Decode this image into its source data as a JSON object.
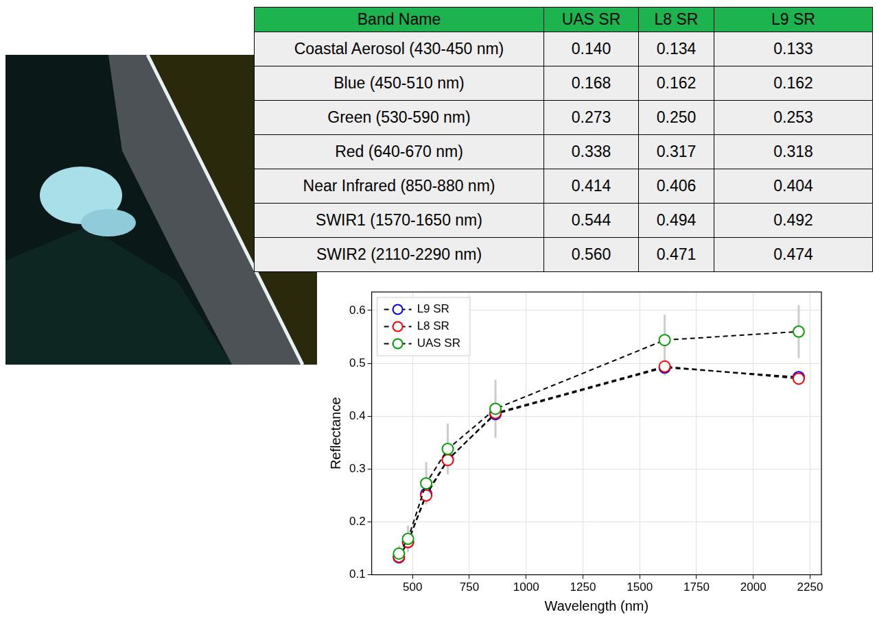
{
  "table": {
    "header": [
      "Band Name",
      "UAS SR",
      "L8 SR",
      "L9 SR"
    ],
    "rows": [
      [
        "Coastal Aerosol (430-450 nm)",
        "0.140",
        "0.134",
        "0.133"
      ],
      [
        "Blue (450-510 nm)",
        "0.168",
        "0.162",
        "0.162"
      ],
      [
        "Green (530-590 nm)",
        "0.273",
        "0.250",
        "0.253"
      ],
      [
        "Red (640-670 nm)",
        "0.338",
        "0.317",
        "0.318"
      ],
      [
        "Near Infrared (850-880 nm)",
        "0.414",
        "0.406",
        "0.404"
      ],
      [
        "SWIR1 (1570-1650 nm)",
        "0.544",
        "0.494",
        "0.492"
      ],
      [
        "SWIR2 (2110-2290 nm)",
        "0.560",
        "0.471",
        "0.474"
      ]
    ]
  },
  "chart_data": {
    "type": "line",
    "x_label": "Wavelength (nm)",
    "y_label": "Reflectance",
    "x": [
      440,
      480,
      560,
      655,
      865,
      1610,
      2200
    ],
    "series": [
      {
        "name": "L9 SR",
        "color": "#0000ff",
        "marker": "circle",
        "line_style": "dashed",
        "values": [
          0.133,
          0.162,
          0.253,
          0.318,
          0.404,
          0.492,
          0.474
        ],
        "errors": [
          0.005,
          0.006,
          0.008,
          0.01,
          0.01,
          0.015,
          0.012
        ]
      },
      {
        "name": "L8 SR",
        "color": "#ff0000",
        "marker": "circle",
        "line_style": "dashed",
        "values": [
          0.134,
          0.162,
          0.25,
          0.317,
          0.406,
          0.494,
          0.471
        ],
        "errors": [
          0.005,
          0.006,
          0.008,
          0.01,
          0.01,
          0.015,
          0.012
        ]
      },
      {
        "name": "UAS SR",
        "color": "#00a000",
        "marker": "circle",
        "line_style": "dashed",
        "values": [
          0.14,
          0.168,
          0.273,
          0.338,
          0.414,
          0.544,
          0.56
        ],
        "errors": [
          0.015,
          0.025,
          0.04,
          0.048,
          0.055,
          0.048,
          0.05
        ]
      }
    ],
    "xlim": [
      320,
      2300
    ],
    "xticks": [
      500,
      750,
      1000,
      1250,
      1500,
      1750,
      2000,
      2250
    ],
    "ylim": [
      0.1,
      0.635
    ],
    "yticks": [
      0.1,
      0.2,
      0.3,
      0.4,
      0.5,
      0.6
    ],
    "grid": true,
    "legend": "upper left"
  }
}
